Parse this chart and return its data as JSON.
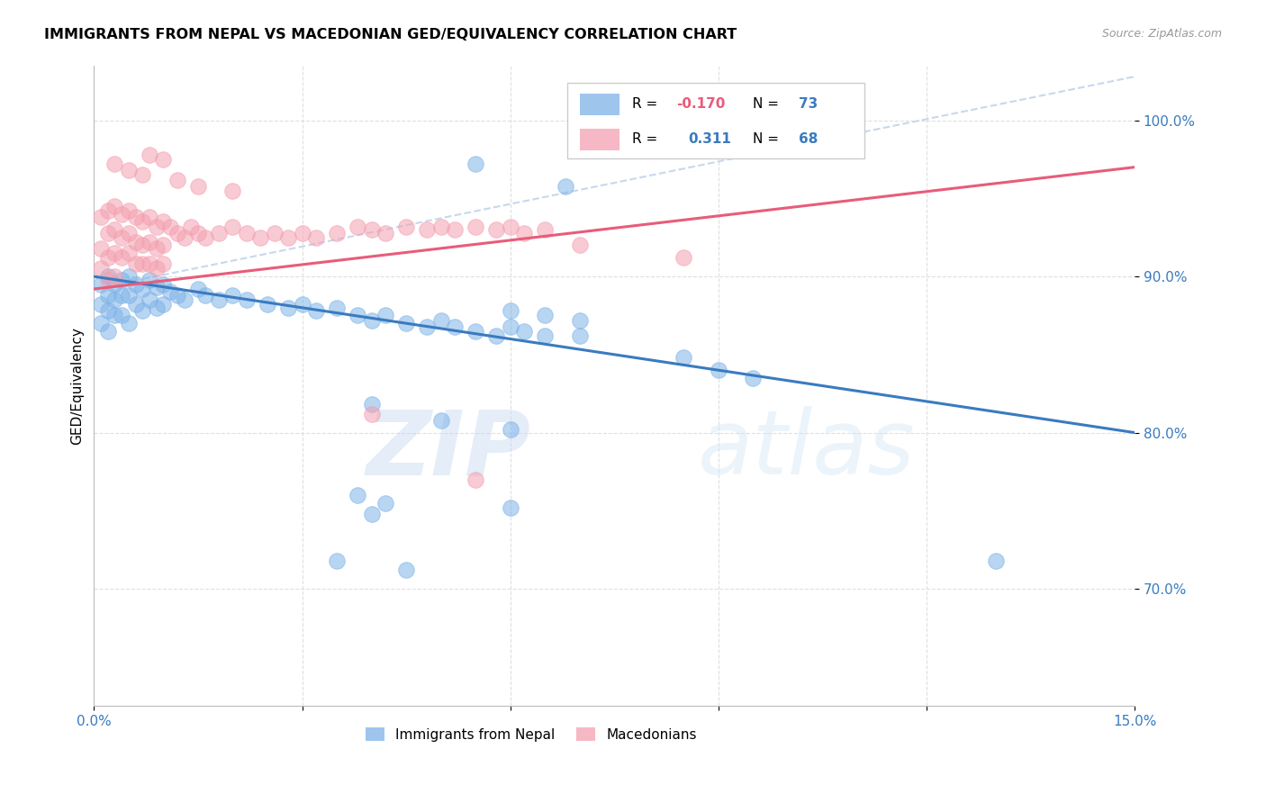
{
  "title": "IMMIGRANTS FROM NEPAL VS MACEDONIAN GED/EQUIVALENCY CORRELATION CHART",
  "source": "Source: ZipAtlas.com",
  "ylabel": "GED/Equivalency",
  "xlim": [
    0.0,
    0.15
  ],
  "ylim": [
    0.625,
    1.035
  ],
  "yticks": [
    0.7,
    0.8,
    0.9,
    1.0
  ],
  "yticklabels": [
    "70.0%",
    "80.0%",
    "90.0%",
    "100.0%"
  ],
  "nepal_color": "#7eb3e8",
  "macedonian_color": "#f4a0b0",
  "nepal_line_color": "#3a7bbf",
  "macedonian_line_color": "#e85c7a",
  "dashed_color": "#c8d8ec",
  "watermark1": "ZIP",
  "watermark2": "atlas",
  "nepal_points": [
    [
      0.001,
      0.895
    ],
    [
      0.001,
      0.882
    ],
    [
      0.001,
      0.87
    ],
    [
      0.002,
      0.9
    ],
    [
      0.002,
      0.888
    ],
    [
      0.002,
      0.878
    ],
    [
      0.002,
      0.865
    ],
    [
      0.003,
      0.895
    ],
    [
      0.003,
      0.885
    ],
    [
      0.003,
      0.875
    ],
    [
      0.004,
      0.898
    ],
    [
      0.004,
      0.888
    ],
    [
      0.004,
      0.875
    ],
    [
      0.005,
      0.9
    ],
    [
      0.005,
      0.888
    ],
    [
      0.005,
      0.87
    ],
    [
      0.006,
      0.895
    ],
    [
      0.006,
      0.882
    ],
    [
      0.007,
      0.892
    ],
    [
      0.007,
      0.878
    ],
    [
      0.008,
      0.898
    ],
    [
      0.008,
      0.885
    ],
    [
      0.009,
      0.893
    ],
    [
      0.009,
      0.88
    ],
    [
      0.01,
      0.895
    ],
    [
      0.01,
      0.882
    ],
    [
      0.011,
      0.89
    ],
    [
      0.012,
      0.888
    ],
    [
      0.013,
      0.885
    ],
    [
      0.015,
      0.892
    ],
    [
      0.016,
      0.888
    ],
    [
      0.018,
      0.885
    ],
    [
      0.02,
      0.888
    ],
    [
      0.022,
      0.885
    ],
    [
      0.025,
      0.882
    ],
    [
      0.028,
      0.88
    ],
    [
      0.03,
      0.882
    ],
    [
      0.032,
      0.878
    ],
    [
      0.035,
      0.88
    ],
    [
      0.038,
      0.875
    ],
    [
      0.04,
      0.872
    ],
    [
      0.042,
      0.875
    ],
    [
      0.045,
      0.87
    ],
    [
      0.048,
      0.868
    ],
    [
      0.05,
      0.872
    ],
    [
      0.052,
      0.868
    ],
    [
      0.055,
      0.865
    ],
    [
      0.058,
      0.862
    ],
    [
      0.06,
      0.868
    ],
    [
      0.062,
      0.865
    ],
    [
      0.065,
      0.862
    ],
    [
      0.07,
      0.862
    ],
    [
      0.06,
      0.878
    ],
    [
      0.065,
      0.875
    ],
    [
      0.07,
      0.872
    ],
    [
      0.055,
      0.972
    ],
    [
      0.068,
      0.958
    ],
    [
      0.04,
      0.748
    ],
    [
      0.06,
      0.752
    ],
    [
      0.035,
      0.718
    ],
    [
      0.045,
      0.712
    ],
    [
      0.13,
      0.718
    ],
    [
      0.085,
      0.848
    ],
    [
      0.09,
      0.84
    ],
    [
      0.095,
      0.835
    ],
    [
      0.04,
      0.818
    ],
    [
      0.05,
      0.808
    ],
    [
      0.06,
      0.802
    ],
    [
      0.038,
      0.76
    ],
    [
      0.042,
      0.755
    ]
  ],
  "macedonian_points": [
    [
      0.001,
      0.938
    ],
    [
      0.001,
      0.918
    ],
    [
      0.001,
      0.905
    ],
    [
      0.002,
      0.942
    ],
    [
      0.002,
      0.928
    ],
    [
      0.002,
      0.912
    ],
    [
      0.002,
      0.898
    ],
    [
      0.003,
      0.945
    ],
    [
      0.003,
      0.93
    ],
    [
      0.003,
      0.915
    ],
    [
      0.003,
      0.9
    ],
    [
      0.004,
      0.94
    ],
    [
      0.004,
      0.925
    ],
    [
      0.004,
      0.912
    ],
    [
      0.005,
      0.942
    ],
    [
      0.005,
      0.928
    ],
    [
      0.005,
      0.915
    ],
    [
      0.006,
      0.938
    ],
    [
      0.006,
      0.922
    ],
    [
      0.006,
      0.908
    ],
    [
      0.007,
      0.935
    ],
    [
      0.007,
      0.92
    ],
    [
      0.007,
      0.908
    ],
    [
      0.008,
      0.938
    ],
    [
      0.008,
      0.922
    ],
    [
      0.008,
      0.908
    ],
    [
      0.009,
      0.932
    ],
    [
      0.009,
      0.918
    ],
    [
      0.009,
      0.905
    ],
    [
      0.01,
      0.935
    ],
    [
      0.01,
      0.92
    ],
    [
      0.01,
      0.908
    ],
    [
      0.011,
      0.932
    ],
    [
      0.012,
      0.928
    ],
    [
      0.013,
      0.925
    ],
    [
      0.014,
      0.932
    ],
    [
      0.015,
      0.928
    ],
    [
      0.016,
      0.925
    ],
    [
      0.018,
      0.928
    ],
    [
      0.02,
      0.932
    ],
    [
      0.022,
      0.928
    ],
    [
      0.024,
      0.925
    ],
    [
      0.026,
      0.928
    ],
    [
      0.028,
      0.925
    ],
    [
      0.03,
      0.928
    ],
    [
      0.032,
      0.925
    ],
    [
      0.035,
      0.928
    ],
    [
      0.038,
      0.932
    ],
    [
      0.04,
      0.93
    ],
    [
      0.042,
      0.928
    ],
    [
      0.045,
      0.932
    ],
    [
      0.048,
      0.93
    ],
    [
      0.05,
      0.932
    ],
    [
      0.052,
      0.93
    ],
    [
      0.055,
      0.932
    ],
    [
      0.058,
      0.93
    ],
    [
      0.06,
      0.932
    ],
    [
      0.062,
      0.928
    ],
    [
      0.065,
      0.93
    ],
    [
      0.003,
      0.972
    ],
    [
      0.005,
      0.968
    ],
    [
      0.007,
      0.965
    ],
    [
      0.008,
      0.978
    ],
    [
      0.01,
      0.975
    ],
    [
      0.012,
      0.962
    ],
    [
      0.015,
      0.958
    ],
    [
      0.02,
      0.955
    ],
    [
      0.04,
      0.812
    ],
    [
      0.055,
      0.77
    ],
    [
      0.085,
      0.912
    ],
    [
      0.07,
      0.92
    ]
  ],
  "nepal_trend": [
    0.0,
    0.15,
    0.9,
    0.8
  ],
  "macedonian_trend": [
    0.0,
    0.15,
    0.892,
    0.97
  ],
  "dashed_trend": [
    0.0,
    0.15,
    0.892,
    1.028
  ]
}
